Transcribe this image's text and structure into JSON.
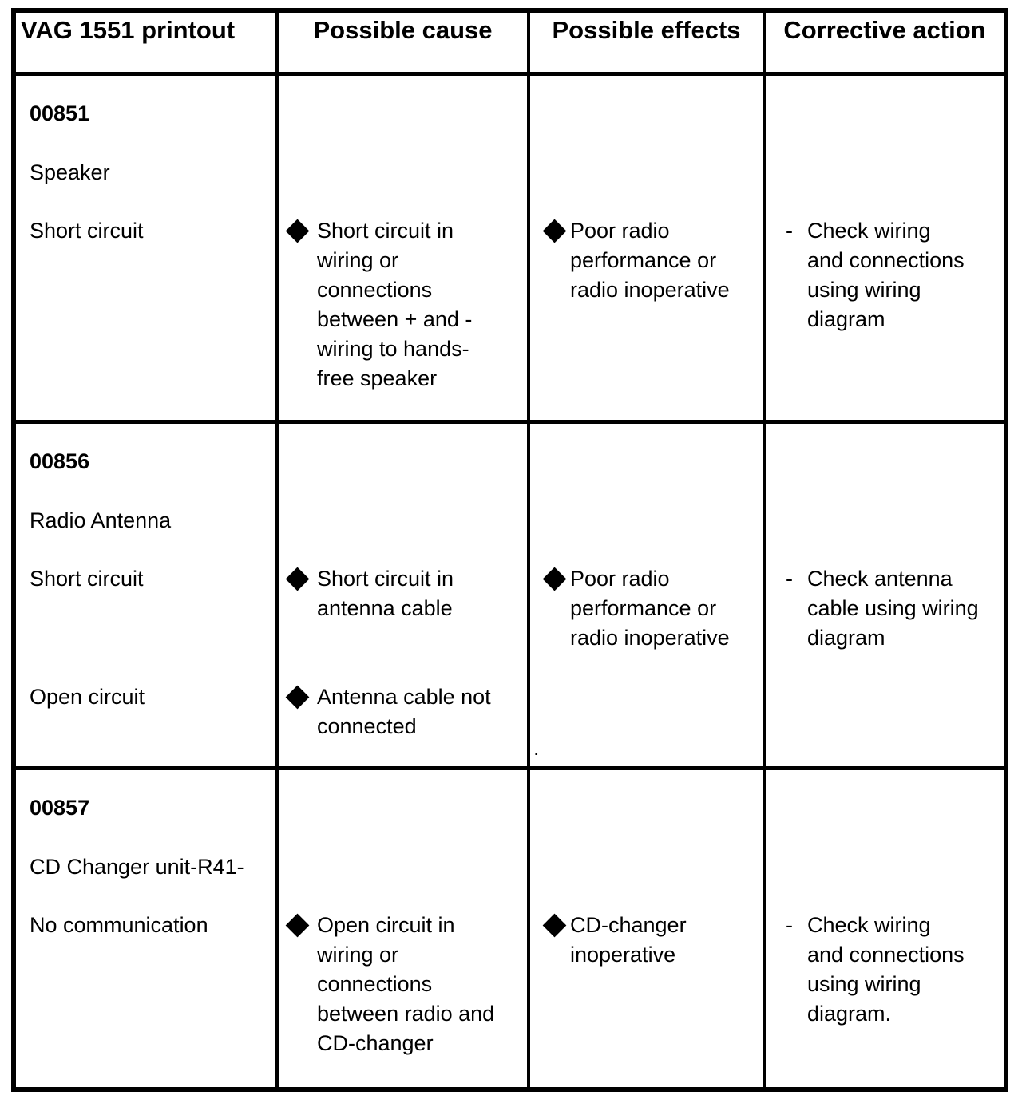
{
  "page": {
    "background": "#ffffff",
    "text_color": "#000000"
  },
  "table": {
    "headers": [
      {
        "label": "VAG 1551 printout"
      },
      {
        "label": "Possible cause"
      },
      {
        "label": "Possible effects"
      },
      {
        "label": "Corrective action"
      }
    ],
    "rows": [
      {
        "code": "00851",
        "component": "Speaker",
        "condition": "Short circuit",
        "cause": "Short circuit in\nwiring or\nconnections\nbetween + and -\nwiring to hands-\nfree speaker",
        "effect": "Poor radio\nperformance or\nradio inoperative",
        "action": "Check wiring\nand connections\nusing wiring\ndiagram"
      },
      {
        "code": "00856",
        "component": "Radio Antenna",
        "condition": "Short circuit",
        "condition2": "Open circuit",
        "cause": "Short circuit in\nantenna cable",
        "cause2": "Antenna cable not\nconnected",
        "effect": "Poor radio\nperformance or\nradio inoperative",
        "action": "Check antenna\ncable using wiring\ndiagram",
        "stray_mark": "."
      },
      {
        "code": "00857",
        "component": "CD Changer unit-R41-",
        "condition": "No communication",
        "cause": "Open circuit in\nwiring or\nconnections\nbetween radio and\nCD-changer",
        "effect": "CD-changer\ninoperative",
        "action": "Check wiring\nand connections\nusing wiring\ndiagram."
      }
    ]
  },
  "glyphs": {
    "dash_marker": "-"
  }
}
